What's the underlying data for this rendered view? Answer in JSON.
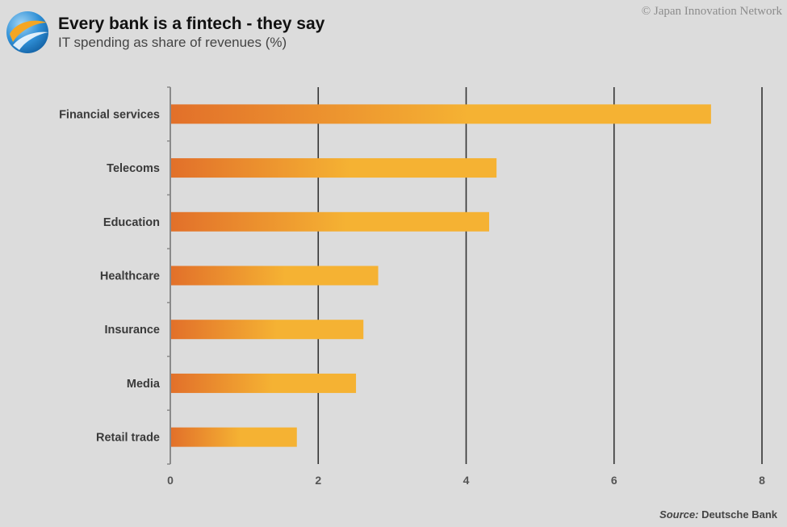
{
  "header": {
    "title": "Every bank is a fintech - they say",
    "subtitle": "IT spending as share of revenues (%)"
  },
  "copyright": "© Japan Innovation Network",
  "source": {
    "label": "Source:",
    "value": " Deutsche Bank"
  },
  "colors": {
    "bar_start": "#e2702a",
    "bar_end": "#f5b233",
    "background": "#dcdcdc",
    "gridline": "#333333"
  },
  "chart_data": {
    "type": "bar",
    "orientation": "horizontal",
    "title": "Every bank is a fintech - they say",
    "subtitle": "IT spending as share of revenues (%)",
    "categories": [
      "Financial services",
      "Telecoms",
      "Education",
      "Healthcare",
      "Insurance",
      "Media",
      "Retail trade"
    ],
    "values": [
      7.3,
      4.4,
      4.3,
      2.8,
      2.6,
      2.5,
      1.7
    ],
    "xlim": [
      0,
      8
    ],
    "xticks": [
      "0",
      "2",
      "4",
      "6",
      "8"
    ],
    "xlabel": "",
    "ylabel": "",
    "grid": true,
    "legend": "none"
  }
}
